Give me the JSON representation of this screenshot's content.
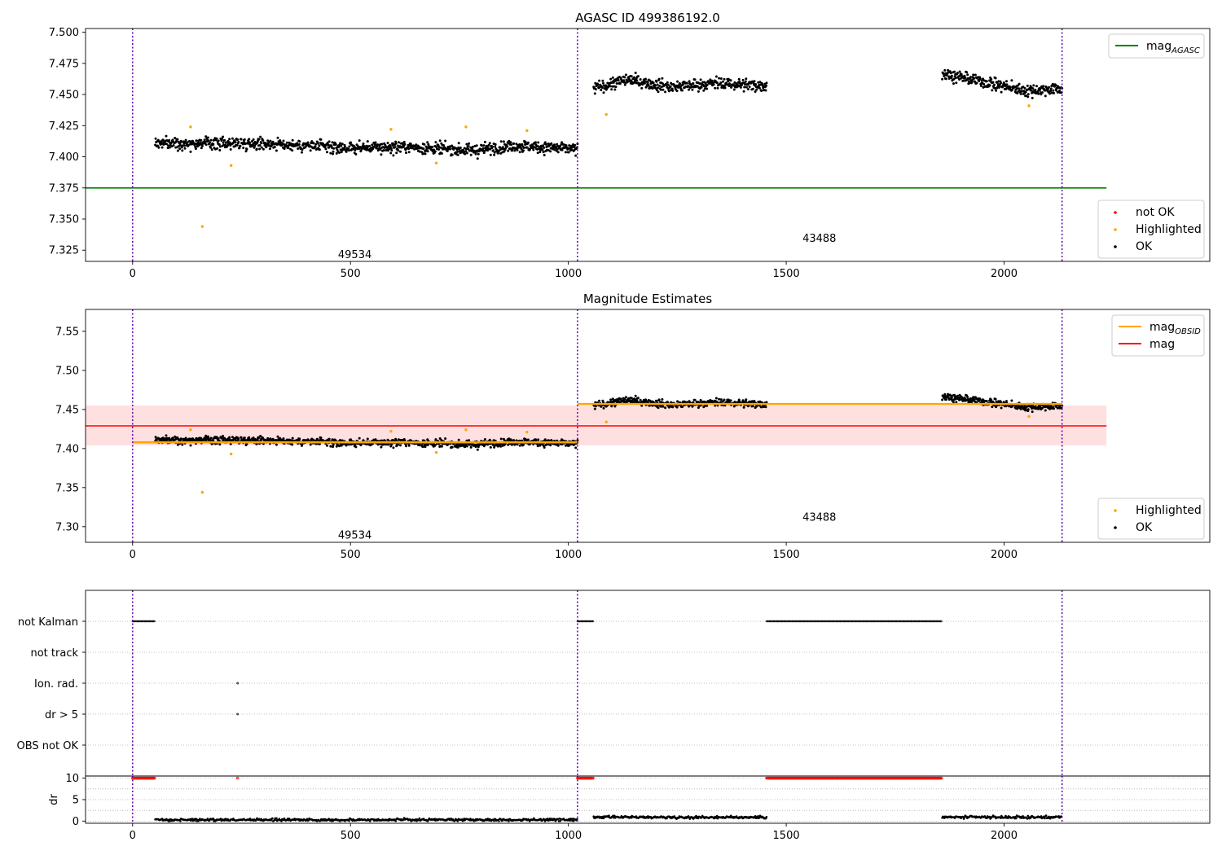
{
  "chart_data": [
    {
      "type": "scatter",
      "title": "AGASC ID 499386192.0",
      "xlabel": "",
      "ylabel": "",
      "xlim": [
        -108,
        2472
      ],
      "ylim": [
        7.316,
        7.503
      ],
      "x_ticks": [
        0,
        500,
        1000,
        1500,
        2000
      ],
      "y_ticks": [
        7.325,
        7.35,
        7.375,
        7.4,
        7.425,
        7.45,
        7.475,
        7.5
      ],
      "y_tick_labels": [
        "7.325",
        "7.350",
        "7.375",
        "7.400",
        "7.425",
        "7.450",
        "7.475",
        "7.500"
      ],
      "grid": false,
      "vertical_lines": [
        0,
        1021,
        2133
      ],
      "hlines": [
        {
          "name": "mag_AGASC",
          "y": 7.375,
          "xmin": -108,
          "xmax": 2235,
          "color": "#008000"
        }
      ],
      "obsid_labels": [
        {
          "text": "49534",
          "x": 510,
          "y": 7.322
        },
        {
          "text": "43488",
          "x": 1576,
          "y": 7.335
        }
      ],
      "segments": [
        {
          "x_start": 52,
          "x_end": 1021,
          "y_levels": [
            [
              0,
              7.411
            ],
            [
              0.25,
              7.411
            ],
            [
              0.45,
              7.407
            ],
            [
              0.6,
              7.408
            ],
            [
              0.75,
              7.405
            ],
            [
              0.85,
              7.409
            ],
            [
              1,
              7.406
            ]
          ],
          "noise": 0.004
        },
        {
          "x_start": 1058,
          "x_end": 1455,
          "y_levels": [
            [
              0,
              7.455
            ],
            [
              0.2,
              7.462
            ],
            [
              0.45,
              7.456
            ],
            [
              0.7,
              7.459
            ],
            [
              1,
              7.457
            ]
          ],
          "noise": 0.004
        },
        {
          "x_start": 1858,
          "x_end": 2133,
          "y_levels": [
            [
              0,
              7.467
            ],
            [
              0.3,
              7.461
            ],
            [
              0.7,
              7.453
            ],
            [
              1,
              7.455
            ]
          ],
          "noise": 0.004
        }
      ],
      "highlighted_points": [
        [
          133,
          7.424
        ],
        [
          160,
          7.344
        ],
        [
          226,
          7.393
        ],
        [
          593,
          7.422
        ],
        [
          697,
          7.395
        ],
        [
          765,
          7.424
        ],
        [
          905,
          7.421
        ],
        [
          1087,
          7.434
        ],
        [
          2057,
          7.441
        ]
      ],
      "legend_top": [
        {
          "label": "mag",
          "subscript": "AGASC",
          "color": "#008000",
          "kind": "line"
        }
      ],
      "legend_bottom": [
        {
          "label": "not OK",
          "color": "#ff0000",
          "kind": "dot"
        },
        {
          "label": "Highlighted",
          "color": "#ffa500",
          "kind": "dot"
        },
        {
          "label": "OK",
          "color": "#000000",
          "kind": "dot"
        }
      ]
    },
    {
      "type": "scatter",
      "title": "Magnitude Estimates",
      "xlabel": "",
      "ylabel": "",
      "xlim": [
        -108,
        2472
      ],
      "ylim": [
        7.28,
        7.578
      ],
      "x_ticks": [
        0,
        500,
        1000,
        1500,
        2000
      ],
      "y_ticks": [
        7.3,
        7.35,
        7.4,
        7.45,
        7.5,
        7.55
      ],
      "y_tick_labels": [
        "7.30",
        "7.35",
        "7.40",
        "7.45",
        "7.50",
        "7.55"
      ],
      "grid": false,
      "vertical_lines": [
        0,
        1021,
        2133
      ],
      "mag": {
        "name": "mag",
        "y": 7.429,
        "band": [
          7.404,
          7.455
        ],
        "xmax": 2235,
        "color": "#ff0000"
      },
      "mag_obsid": [
        {
          "x0": 0,
          "x1": 1021,
          "y": 7.408
        },
        {
          "x0": 1021,
          "x1": 2133,
          "y": 7.457
        }
      ],
      "obsid_labels": [
        {
          "text": "49534",
          "x": 510,
          "y": 7.29
        },
        {
          "text": "43488",
          "x": 1576,
          "y": 7.313
        }
      ],
      "legend_top": [
        {
          "label": "mag",
          "subscript": "OBSID",
          "color": "#ffa500",
          "kind": "line"
        },
        {
          "label": "mag",
          "subscript": "",
          "color": "#ff0000",
          "kind": "line"
        }
      ],
      "legend_bottom": [
        {
          "label": "Highlighted",
          "color": "#ffa500",
          "kind": "dot"
        },
        {
          "label": "OK",
          "color": "#000000",
          "kind": "dot"
        }
      ]
    },
    {
      "type": "scatter",
      "title": "",
      "xlabel": "",
      "ylabel": "",
      "xlim": [
        -108,
        2472
      ],
      "grid": true,
      "vertical_lines": [
        0,
        1021,
        2133
      ],
      "flag_categories": [
        "not Kalman",
        "not track",
        "Ion. rad.",
        "dr > 5",
        "OBS not OK"
      ],
      "flag_ranges": [
        {
          "category": "not Kalman",
          "ranges": [
            [
              0,
              52
            ],
            [
              1021,
              1058
            ],
            [
              1455,
              1858
            ]
          ]
        },
        {
          "category": "not track",
          "ranges": []
        },
        {
          "category": "Ion. rad.",
          "points": [
            241
          ]
        },
        {
          "category": "dr > 5",
          "points": [
            241
          ]
        },
        {
          "category": "OBS not OK",
          "ranges": []
        }
      ]
    },
    {
      "type": "scatter",
      "title": "",
      "xlabel": "",
      "ylabel": "dr",
      "xlim": [
        -108,
        2472
      ],
      "ylim": [
        -0.5,
        10.5
      ],
      "x_ticks": [
        0,
        500,
        1000,
        1500,
        2000
      ],
      "y_ticks": [
        0,
        5,
        10
      ],
      "grid": true,
      "vertical_lines": [
        0,
        1021,
        2133
      ],
      "capped_points_dr": 10,
      "capped_ranges": [
        [
          0,
          52
        ],
        [
          1021,
          1058
        ],
        [
          1455,
          1858
        ]
      ],
      "capped_single": [
        241
      ],
      "dr_segments": [
        {
          "x_start": 52,
          "x_end": 1021,
          "level": 0.3
        },
        {
          "x_start": 1058,
          "x_end": 1455,
          "level": 0.9
        },
        {
          "x_start": 1858,
          "x_end": 2133,
          "level": 0.9
        }
      ]
    }
  ]
}
